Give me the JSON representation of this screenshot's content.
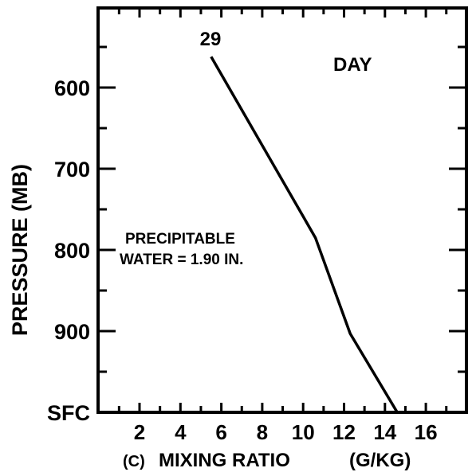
{
  "chart_data": {
    "type": "line",
    "title": "",
    "panel_label": "(C)",
    "xlabel": "MIXING RATIO",
    "xunit": "(G/KG)",
    "ylabel": "PRESSURE (MB)",
    "x_ticks": [
      "2",
      "4",
      "6",
      "8",
      "10",
      "12",
      "14",
      "16"
    ],
    "y_ticks": [
      "600",
      "700",
      "800",
      "900",
      "SFC"
    ],
    "xlim": [
      0,
      18
    ],
    "ylim": [
      1000,
      510
    ],
    "grid": false,
    "series": [
      {
        "name": "29",
        "points": [
          {
            "x": 5.5,
            "y": 562
          },
          {
            "x": 10.6,
            "y": 785
          },
          {
            "x": 12.3,
            "y": 903
          },
          {
            "x": 14.6,
            "y": 1000
          }
        ]
      }
    ],
    "annotations": {
      "day": "DAY",
      "precip_line1": "PRECIPITABLE",
      "precip_line2": "WATER = 1.90  IN."
    }
  }
}
